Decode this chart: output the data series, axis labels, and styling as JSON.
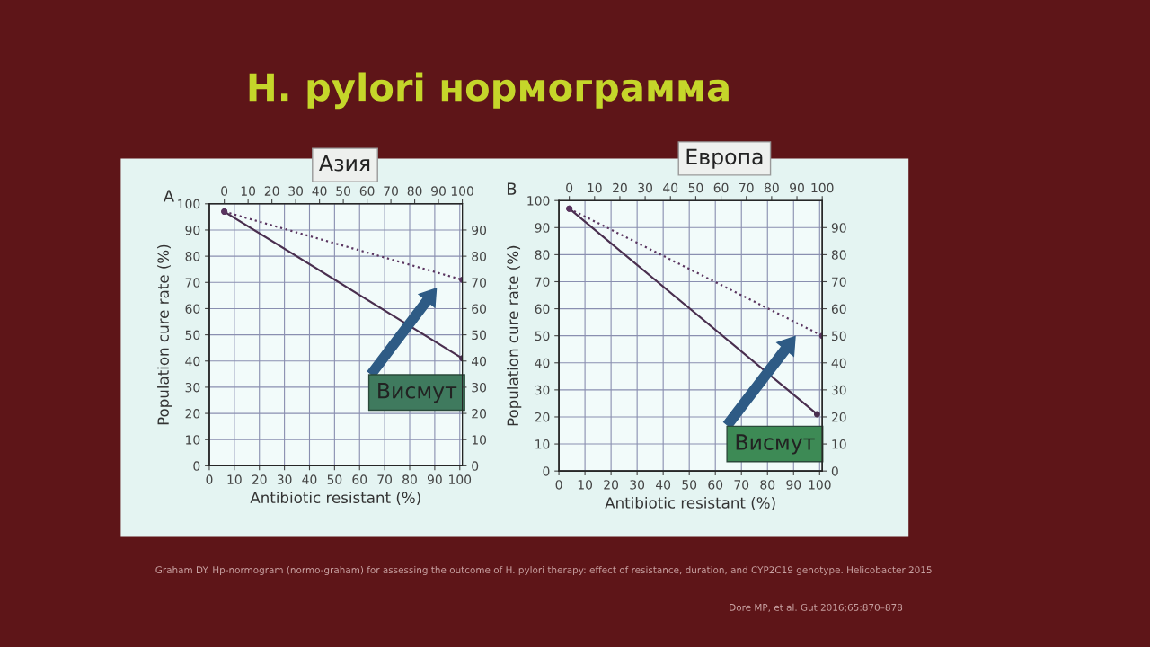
{
  "chart_data": [
    {
      "type": "line",
      "title": "Азия",
      "xlabel": "Antibiotic resistant (%)",
      "ylabel": "Population cure rate (%)",
      "xlim": [
        0,
        101
      ],
      "xticks": [
        0,
        10,
        20,
        30,
        40,
        50,
        60,
        70,
        80,
        90,
        100
      ],
      "x2lim": [
        -6.3,
        100
      ],
      "x2ticks": [
        0,
        10,
        20,
        30,
        40,
        50,
        60,
        70,
        80,
        90,
        100
      ],
      "ylim": [
        0,
        100
      ],
      "yticks": [
        0,
        10,
        20,
        30,
        40,
        50,
        60,
        70,
        80,
        90,
        100
      ],
      "y2lim": [
        0,
        100
      ],
      "y2ticks": [
        0,
        10,
        20,
        30,
        40,
        50,
        60,
        70,
        80,
        90
      ],
      "grid": true,
      "marker": "circle",
      "series": [
        {
          "color": "#4a2f4f",
          "line_style": "solid",
          "x": [
            6,
            101
          ],
          "values": [
            97,
            41
          ]
        },
        {
          "color": "#5a3560",
          "line_style": "dotted",
          "x": [
            6,
            101
          ],
          "values": [
            97,
            71
          ]
        }
      ],
      "annotations": [
        "H. pylori нормограмма",
        "A",
        "Висмут",
        "Graham DY. Hp-normogram (normo-graham) for assessing the outcome of H. pylori therapy: effect of resistance, duration, and CYP2C19 genotype. Helicobacter 2015"
      ]
    },
    {
      "type": "line",
      "title": "Европа",
      "xlabel": "Antibiotic resistant (%)",
      "ylabel": "Population cure rate (%)",
      "xlim": [
        0,
        101
      ],
      "xticks": [
        0,
        10,
        20,
        30,
        40,
        50,
        60,
        70,
        80,
        90,
        100
      ],
      "x2lim": [
        -4.1,
        100
      ],
      "x2ticks": [
        0,
        10,
        20,
        30,
        40,
        50,
        60,
        70,
        80,
        90,
        100
      ],
      "ylim": [
        0,
        100
      ],
      "yticks": [
        0,
        10,
        20,
        30,
        40,
        50,
        60,
        70,
        80,
        90,
        100
      ],
      "y2lim": [
        0,
        100
      ],
      "y2ticks": [
        0,
        10,
        20,
        30,
        40,
        50,
        60,
        70,
        80,
        90
      ],
      "grid": true,
      "marker": "circle",
      "series": [
        {
          "color": "#4a2f4f",
          "line_style": "solid",
          "x": [
            4,
            99
          ],
          "values": [
            97,
            21
          ]
        },
        {
          "color": "#5a3560",
          "line_style": "dotted",
          "x": [
            4,
            101
          ],
          "values": [
            97,
            50
          ]
        }
      ],
      "annotations": [
        "B",
        "Висмут",
        "Dore MP, et al. Gut 2016;65:870–878"
      ]
    }
  ]
}
